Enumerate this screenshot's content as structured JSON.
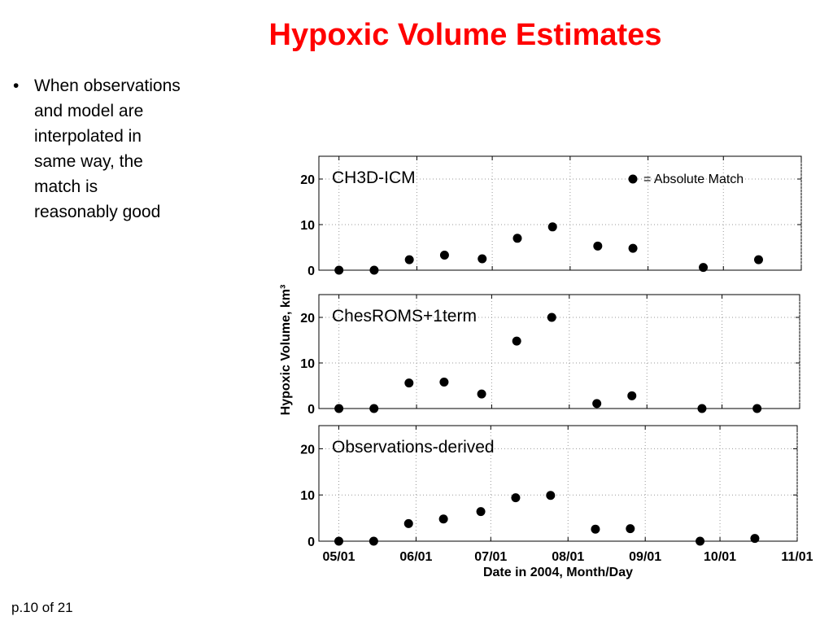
{
  "slide": {
    "title": "Hypoxic Volume Estimates",
    "bullets": [
      {
        "lines": [
          "When observations",
          "and model are",
          "interpolated in",
          "same way, the",
          "match is",
          "reasonably good"
        ]
      }
    ],
    "footer": "p.10 of 21"
  },
  "chart_data": [
    {
      "type": "scatter",
      "title": "CH3D-ICM",
      "legend": {
        "label": "= Absolute Match",
        "placement": "top-right"
      },
      "xlabel": "",
      "ylabel": "Hypoxic Volume, km³",
      "ylim": [
        0,
        25
      ],
      "yticks": [
        0,
        10,
        20
      ],
      "grid": true,
      "x": [
        "2004-05-01",
        "2004-05-15",
        "2004-05-29",
        "2004-06-12",
        "2004-06-27",
        "2004-07-11",
        "2004-07-25",
        "2004-08-12",
        "2004-08-26",
        "2004-09-23",
        "2004-10-15"
      ],
      "values": [
        0,
        0,
        2.3,
        3.3,
        2.5,
        7,
        9.5,
        5.3,
        4.8,
        0.6,
        2.3
      ]
    },
    {
      "type": "scatter",
      "title": "ChesROMS+1term",
      "xlabel": "",
      "ylabel": "Hypoxic Volume, km³",
      "ylim": [
        0,
        25
      ],
      "yticks": [
        0,
        10,
        20
      ],
      "grid": true,
      "x": [
        "2004-05-01",
        "2004-05-15",
        "2004-05-29",
        "2004-06-12",
        "2004-06-27",
        "2004-07-11",
        "2004-07-25",
        "2004-08-12",
        "2004-08-26",
        "2004-09-23",
        "2004-10-15"
      ],
      "values": [
        0,
        0,
        5.6,
        5.8,
        3.2,
        14.8,
        20,
        1.1,
        2.8,
        0,
        0
      ]
    },
    {
      "type": "scatter",
      "title": "Observations-derived",
      "xlabel": "Date in 2004, Month/Day",
      "ylabel": "Hypoxic Volume, km³",
      "ylim": [
        0,
        25
      ],
      "yticks": [
        0,
        10,
        20
      ],
      "xticks": [
        "05/01",
        "06/01",
        "07/01",
        "08/01",
        "09/01",
        "10/01",
        "11/01"
      ],
      "grid": true,
      "x": [
        "2004-05-01",
        "2004-05-15",
        "2004-05-29",
        "2004-06-12",
        "2004-06-27",
        "2004-07-11",
        "2004-07-25",
        "2004-08-12",
        "2004-08-26",
        "2004-09-23",
        "2004-10-15"
      ],
      "values": [
        0,
        0,
        3.8,
        4.8,
        6.4,
        9.4,
        9.9,
        2.6,
        2.7,
        0,
        0.6
      ]
    }
  ]
}
